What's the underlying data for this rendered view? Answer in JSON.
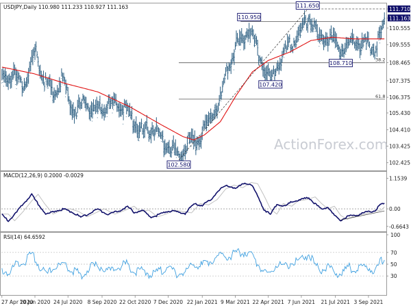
{
  "chart_data": [
    {
      "type": "line",
      "panel": "price",
      "header": "USDJPY,Daily  110.980 111.233 110.927 111.163",
      "ylim": [
        102.0,
        112.0
      ],
      "y_ticks": [
        "111.710",
        "111.163",
        "110.555",
        "109.555",
        "108.465",
        "107.375",
        "106.375",
        "105.430",
        "104.410",
        "103.425",
        "102.425"
      ],
      "y_tick_values": [
        111.71,
        111.163,
        110.555,
        109.555,
        108.465,
        107.375,
        106.375,
        105.43,
        104.41,
        103.425,
        102.425
      ],
      "highlight_ticks": [
        "111.710",
        "111.163"
      ],
      "x_labels": [
        "27 Apr 2020",
        "10 Jun 2020",
        "24 Jul 2020",
        "8 Sep 2020",
        "22 Oct 2020",
        "7 Dec 2020",
        "22 Jan 2021",
        "9 Mar 2021",
        "22 Apr 2021",
        "7 Jun 2021",
        "21 Jul 2021",
        "3 Sep 2021"
      ],
      "x_label_index": [
        0,
        31,
        62,
        94,
        125,
        156,
        188,
        219,
        250,
        281,
        313,
        344
      ],
      "bar_count": 360,
      "price_keypoints": [
        [
          0,
          107.6
        ],
        [
          10,
          108.0
        ],
        [
          20,
          107.4
        ],
        [
          32,
          109.3
        ],
        [
          40,
          107.6
        ],
        [
          50,
          106.9
        ],
        [
          56,
          107.8
        ],
        [
          68,
          105.7
        ],
        [
          78,
          106.3
        ],
        [
          88,
          105.7
        ],
        [
          96,
          106.0
        ],
        [
          112,
          106.2
        ],
        [
          122,
          105.3
        ],
        [
          132,
          104.5
        ],
        [
          142,
          104.8
        ],
        [
          150,
          104.0
        ],
        [
          160,
          103.6
        ],
        [
          166,
          103.1
        ],
        [
          176,
          104.1
        ],
        [
          182,
          103.7
        ],
        [
          192,
          105.0
        ],
        [
          200,
          105.8
        ],
        [
          206,
          106.6
        ],
        [
          212,
          108.3
        ],
        [
          220,
          109.8
        ],
        [
          228,
          110.3
        ],
        [
          232,
          110.9
        ],
        [
          238,
          109.8
        ],
        [
          246,
          108.3
        ],
        [
          252,
          107.6
        ],
        [
          258,
          108.5
        ],
        [
          266,
          109.4
        ],
        [
          274,
          110.0
        ],
        [
          282,
          110.7
        ],
        [
          288,
          111.5
        ],
        [
          292,
          111.0
        ],
        [
          298,
          110.0
        ],
        [
          304,
          110.3
        ],
        [
          312,
          110.0
        ],
        [
          318,
          109.4
        ],
        [
          324,
          109.8
        ],
        [
          330,
          110.2
        ],
        [
          338,
          109.7
        ],
        [
          344,
          109.9
        ],
        [
          350,
          109.4
        ],
        [
          356,
          110.5
        ],
        [
          359,
          111.16
        ]
      ],
      "ma_keypoints": [
        [
          0,
          108.2
        ],
        [
          30,
          107.8
        ],
        [
          60,
          107.2
        ],
        [
          90,
          106.7
        ],
        [
          120,
          105.8
        ],
        [
          150,
          104.7
        ],
        [
          170,
          104.0
        ],
        [
          180,
          103.8
        ],
        [
          190,
          104.1
        ],
        [
          205,
          104.9
        ],
        [
          220,
          106.5
        ],
        [
          235,
          107.9
        ],
        [
          250,
          108.6
        ],
        [
          270,
          109.1
        ],
        [
          290,
          109.8
        ],
        [
          310,
          110.0
        ],
        [
          330,
          109.9
        ],
        [
          350,
          109.9
        ],
        [
          359,
          109.9
        ]
      ],
      "annotations": [
        {
          "text": "111.650",
          "bar": 287,
          "price": 111.65,
          "position": "above"
        },
        {
          "text": "110.950",
          "bar": 232,
          "price": 110.95,
          "position": "above"
        },
        {
          "text": "108.710",
          "bar": 318,
          "price": 108.71,
          "position": "below"
        },
        {
          "text": "107.420",
          "bar": 252,
          "price": 107.42,
          "position": "below"
        },
        {
          "text": "102.580",
          "bar": 166,
          "price": 102.58,
          "position": "below"
        }
      ],
      "fib_levels": [
        {
          "label": "38.2",
          "price": 108.46
        },
        {
          "label": "61.8",
          "price": 106.26
        }
      ],
      "resistance_level": 111.71,
      "trendline": [
        [
          166,
          102.6
        ],
        [
          287,
          111.7
        ]
      ],
      "watermark": "ActionForex.com",
      "colors": {
        "bars": "#2a5d80",
        "ma": "#e01010",
        "fib": "#555555",
        "box": "#10106a",
        "highlight_tick_bg": "#10106a"
      }
    },
    {
      "type": "line",
      "panel": "macd",
      "header": "MACD(12,26,9) 0.2000 -0.0029",
      "ylim": [
        -0.8,
        1.35
      ],
      "y_ticks": [
        "1.1539",
        "0.00",
        "-0.6643"
      ],
      "y_tick_values": [
        1.1539,
        0.0,
        -0.6643
      ],
      "macd_keypoints": [
        [
          0,
          -0.2
        ],
        [
          6,
          -0.45
        ],
        [
          14,
          -0.1
        ],
        [
          22,
          0.3
        ],
        [
          28,
          0.55
        ],
        [
          34,
          0.2
        ],
        [
          42,
          -0.2
        ],
        [
          50,
          -0.05
        ],
        [
          58,
          0.0
        ],
        [
          66,
          -0.1
        ],
        [
          74,
          -0.3
        ],
        [
          82,
          -0.15
        ],
        [
          90,
          0.0
        ],
        [
          100,
          -0.2
        ],
        [
          110,
          -0.05
        ],
        [
          118,
          0.1
        ],
        [
          124,
          -0.1
        ],
        [
          132,
          -0.05
        ],
        [
          140,
          -0.3
        ],
        [
          148,
          -0.2
        ],
        [
          156,
          -0.05
        ],
        [
          164,
          -0.1
        ],
        [
          172,
          -0.15
        ],
        [
          180,
          0.2
        ],
        [
          188,
          0.15
        ],
        [
          196,
          0.35
        ],
        [
          204,
          0.75
        ],
        [
          212,
          0.9
        ],
        [
          220,
          0.8
        ],
        [
          228,
          1.0
        ],
        [
          234,
          0.95
        ],
        [
          240,
          0.5
        ],
        [
          246,
          0.0
        ],
        [
          252,
          -0.2
        ],
        [
          258,
          0.2
        ],
        [
          266,
          0.1
        ],
        [
          272,
          0.3
        ],
        [
          280,
          0.35
        ],
        [
          288,
          0.45
        ],
        [
          294,
          0.2
        ],
        [
          300,
          0.0
        ],
        [
          306,
          0.1
        ],
        [
          312,
          -0.25
        ],
        [
          318,
          -0.4
        ],
        [
          326,
          -0.25
        ],
        [
          334,
          -0.2
        ],
        [
          342,
          -0.1
        ],
        [
          350,
          -0.05
        ],
        [
          356,
          0.2
        ],
        [
          359,
          0.2
        ]
      ],
      "signal_lag": 6,
      "trendline": [
        [
          318,
          -0.42
        ],
        [
          359,
          -0.08
        ]
      ],
      "colors": {
        "macd": "#10106a",
        "signal": "#c0c0c0",
        "zero": "#888888",
        "trend": "#333333"
      }
    },
    {
      "type": "line",
      "panel": "rsi",
      "header": "RSI(14) 64.6592",
      "ylim": [
        0,
        100
      ],
      "y_ticks": [
        "100",
        "70",
        "50",
        "30",
        "0"
      ],
      "y_tick_values": [
        100,
        70,
        50,
        30,
        0
      ],
      "rsi_keypoints": [
        [
          0,
          45
        ],
        [
          6,
          40
        ],
        [
          14,
          55
        ],
        [
          22,
          60
        ],
        [
          28,
          72
        ],
        [
          34,
          55
        ],
        [
          42,
          35
        ],
        [
          50,
          50
        ],
        [
          58,
          52
        ],
        [
          66,
          45
        ],
        [
          74,
          35
        ],
        [
          82,
          48
        ],
        [
          90,
          52
        ],
        [
          100,
          42
        ],
        [
          110,
          50
        ],
        [
          118,
          55
        ],
        [
          124,
          40
        ],
        [
          132,
          45
        ],
        [
          140,
          35
        ],
        [
          148,
          42
        ],
        [
          156,
          50
        ],
        [
          164,
          38
        ],
        [
          172,
          40
        ],
        [
          180,
          55
        ],
        [
          188,
          52
        ],
        [
          196,
          60
        ],
        [
          204,
          70
        ],
        [
          212,
          68
        ],
        [
          220,
          72
        ],
        [
          228,
          75
        ],
        [
          234,
          70
        ],
        [
          240,
          55
        ],
        [
          246,
          42
        ],
        [
          252,
          38
        ],
        [
          258,
          55
        ],
        [
          266,
          50
        ],
        [
          272,
          58
        ],
        [
          280,
          60
        ],
        [
          288,
          72
        ],
        [
          294,
          50
        ],
        [
          300,
          45
        ],
        [
          306,
          52
        ],
        [
          312,
          40
        ],
        [
          318,
          38
        ],
        [
          326,
          48
        ],
        [
          334,
          45
        ],
        [
          342,
          50
        ],
        [
          350,
          42
        ],
        [
          356,
          60
        ],
        [
          359,
          64.66
        ]
      ],
      "colors": {
        "rsi": "#3fa0e0",
        "guide": "#bbbbbb"
      }
    }
  ]
}
